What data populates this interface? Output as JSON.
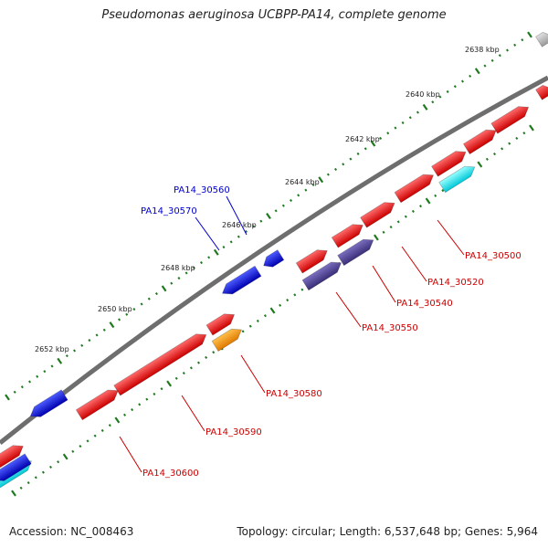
{
  "title": "Pseudomonas aeruginosa UCBPP-PA14, complete genome",
  "footer": {
    "accession": "Accession: NC_008463",
    "stats": "Topology: circular; Length: 6,537,648 bp; Genes: 5,964"
  },
  "colors": {
    "backbone": "#7f7f7f",
    "tick": "#1f7a1f",
    "forward_gene": "#ff0000",
    "reverse_gene": "#0000ff",
    "dark_feature": "#4a3d8f",
    "cyan_feature": "#00ffff",
    "orange_feature": "#ff9900",
    "grey_feature": "#bfbfbf",
    "label_forward": "#cc0000",
    "label_reverse": "#0000cc"
  },
  "scale_labels": [
    "2638 kbp",
    "2640 kbp",
    "2642 kbp",
    "2644 kbp",
    "2646 kbp",
    "2648 kbp",
    "2650 kbp",
    "2652 kbp"
  ],
  "gene_labels": [
    {
      "name": "PA14_30500",
      "strand": "forward"
    },
    {
      "name": "PA14_30520",
      "strand": "forward"
    },
    {
      "name": "PA14_30540",
      "strand": "forward"
    },
    {
      "name": "PA14_30550",
      "strand": "forward"
    },
    {
      "name": "PA14_30560",
      "strand": "reverse"
    },
    {
      "name": "PA14_30570",
      "strand": "reverse"
    },
    {
      "name": "PA14_30580",
      "strand": "forward"
    },
    {
      "name": "PA14_30590",
      "strand": "forward"
    },
    {
      "name": "PA14_30600",
      "strand": "forward"
    }
  ]
}
